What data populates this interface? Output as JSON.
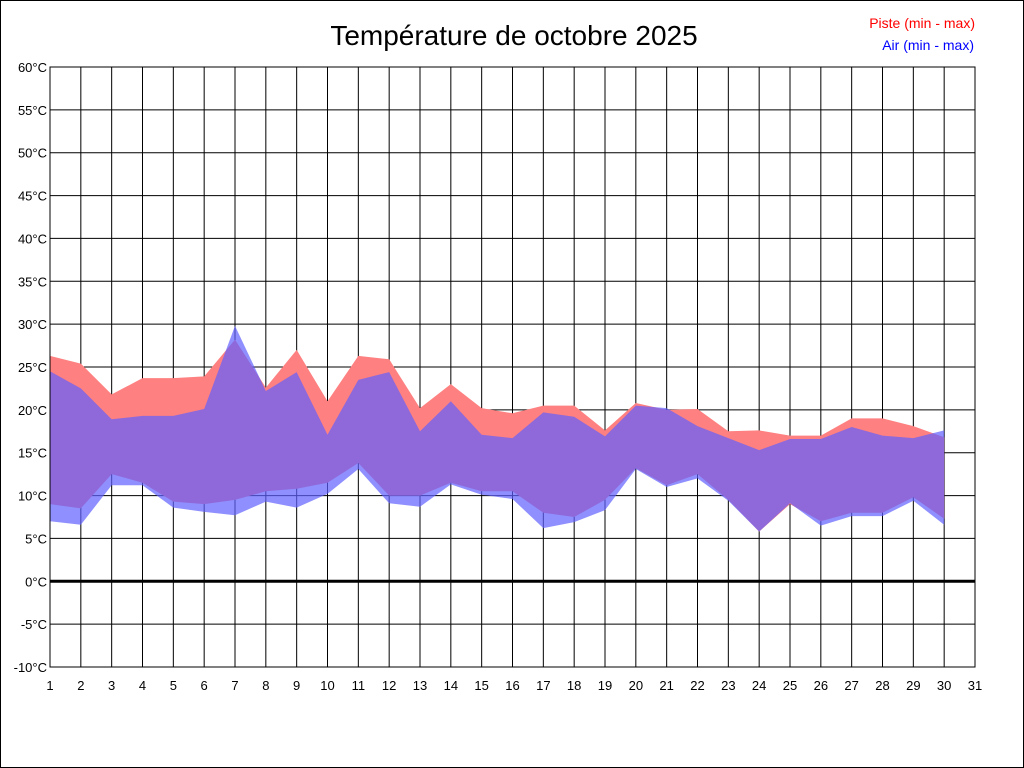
{
  "chart_data": {
    "type": "area",
    "title": "Température de octobre 2025",
    "x": [
      1,
      2,
      3,
      4,
      5,
      6,
      7,
      8,
      9,
      10,
      11,
      12,
      13,
      14,
      15,
      16,
      17,
      18,
      19,
      20,
      21,
      22,
      23,
      24,
      25,
      26,
      27,
      28,
      29,
      30
    ],
    "x_ticks": [
      "1",
      "2",
      "3",
      "4",
      "5",
      "6",
      "7",
      "8",
      "9",
      "10",
      "11",
      "12",
      "13",
      "14",
      "15",
      "16",
      "17",
      "18",
      "19",
      "20",
      "21",
      "22",
      "23",
      "24",
      "25",
      "26",
      "27",
      "28",
      "29",
      "30",
      "31"
    ],
    "xlim": [
      1,
      31
    ],
    "y_ticks": [
      "-10°C",
      "-5°C",
      "0°C",
      "5°C",
      "10°C",
      "15°C",
      "20°C",
      "25°C",
      "30°C",
      "35°C",
      "40°C",
      "45°C",
      "50°C",
      "55°C",
      "60°C"
    ],
    "ylim": [
      -10,
      60
    ],
    "grid": true,
    "legend_position": "top-right",
    "series": [
      {
        "name": "Piste (min - max)",
        "color": "#ff8080",
        "min": [
          9.0,
          8.5,
          12.5,
          11.5,
          9.3,
          9.0,
          9.5,
          10.5,
          10.8,
          11.5,
          13.8,
          10.0,
          10.0,
          11.5,
          10.5,
          10.5,
          8.0,
          7.5,
          9.5,
          13.2,
          11.2,
          12.5,
          9.5,
          5.8,
          9.0,
          7.0,
          8.0,
          8.0,
          9.8,
          7.3
        ],
        "max": [
          26.3,
          25.4,
          21.8,
          23.7,
          23.7,
          23.9,
          28.2,
          22.6,
          27.0,
          21.0,
          26.3,
          25.9,
          20.2,
          23.0,
          20.2,
          19.6,
          20.5,
          20.5,
          17.6,
          20.8,
          20.0,
          20.1,
          17.5,
          17.6,
          17.0,
          17.0,
          19.0,
          19.0,
          18.1,
          16.8
        ]
      },
      {
        "name": "Air (min - max)",
        "color": "#6060ff",
        "min": [
          7.0,
          6.6,
          11.2,
          11.2,
          8.6,
          8.1,
          7.7,
          9.3,
          8.6,
          10.2,
          13.1,
          9.1,
          8.7,
          11.3,
          10.1,
          9.6,
          6.2,
          6.9,
          8.3,
          13.1,
          11.0,
          12.0,
          9.4,
          5.8,
          9.1,
          6.5,
          7.6,
          7.6,
          9.4,
          6.6
        ],
        "max": [
          24.5,
          22.5,
          18.9,
          19.3,
          19.3,
          20.1,
          29.8,
          22.2,
          24.4,
          17.1,
          23.5,
          24.4,
          17.5,
          21.0,
          17.1,
          16.7,
          19.7,
          19.2,
          16.9,
          20.5,
          20.2,
          18.1,
          16.7,
          15.3,
          16.6,
          16.6,
          18.0,
          17.0,
          16.7,
          17.6
        ]
      }
    ]
  }
}
